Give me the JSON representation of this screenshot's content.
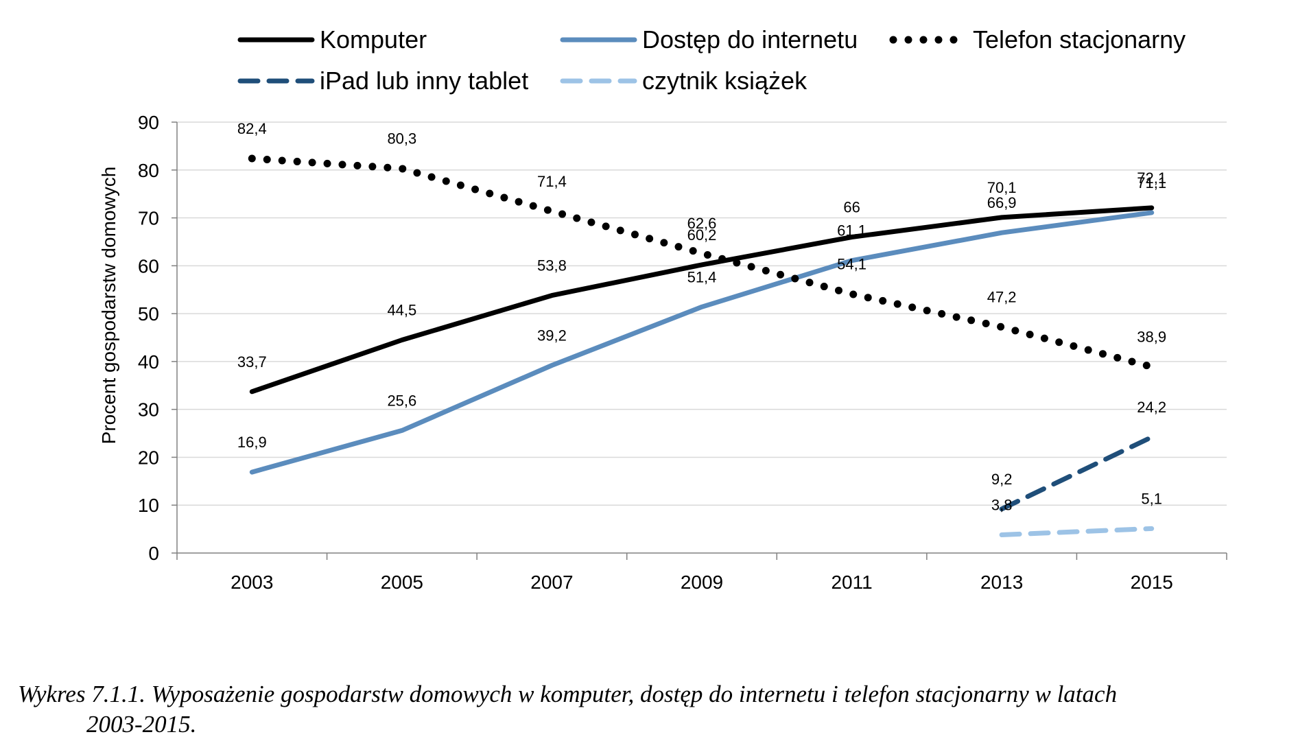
{
  "chart_data": {
    "type": "line",
    "ylabel": "Procent gospodarstw domowych",
    "xlabel": "",
    "ylim": [
      0,
      90
    ],
    "yticks": [
      0,
      10,
      20,
      30,
      40,
      50,
      60,
      70,
      80,
      90
    ],
    "categories": [
      "2003",
      "2005",
      "2007",
      "2009",
      "2011",
      "2013",
      "2015"
    ],
    "grid": "horizontal",
    "legend_position": "top",
    "series": [
      {
        "name": "Komputer",
        "color": "#000000",
        "style": "solid",
        "values": [
          33.7,
          44.5,
          53.8,
          60.2,
          66,
          70.1,
          72.1
        ],
        "labels": [
          "33,7",
          "44,5",
          "53,8",
          "60,2",
          "66",
          "70,1",
          "72,1"
        ]
      },
      {
        "name": "Dostęp do internetu",
        "color": "#5b8cbd",
        "style": "solid",
        "values": [
          16.9,
          25.6,
          39.2,
          51.4,
          61.1,
          66.9,
          71.1
        ],
        "labels": [
          "16,9",
          "25,6",
          "39,2",
          "51,4",
          "61,1",
          "66,9",
          "71,1"
        ]
      },
      {
        "name": "Telefon stacjonarny",
        "color": "#000000",
        "style": "dotted",
        "values": [
          82.4,
          80.3,
          71.4,
          62.6,
          54.1,
          47.2,
          38.9
        ],
        "labels": [
          "82,4",
          "80,3",
          "71,4",
          "62,6",
          "54,1",
          "47,2",
          "38,9"
        ]
      },
      {
        "name": "iPad lub inny tablet",
        "color": "#1f4e79",
        "style": "dashed",
        "values": [
          null,
          null,
          null,
          null,
          null,
          9.2,
          24.2
        ],
        "labels": [
          "",
          "",
          "",
          "",
          "",
          "9,2",
          "24,2"
        ]
      },
      {
        "name": "czytnik książek",
        "color": "#9dc3e6",
        "style": "dashed",
        "values": [
          null,
          null,
          null,
          null,
          null,
          3.8,
          5.1
        ],
        "labels": [
          "",
          "",
          "",
          "",
          "",
          "3,8",
          "5,1"
        ]
      }
    ]
  },
  "caption": {
    "line1": "Wykres 7.1.1. Wyposażenie gospodarstw domowych w komputer, dostęp do internetu i telefon stacjonarny w latach",
    "line2": "2003-2015."
  }
}
